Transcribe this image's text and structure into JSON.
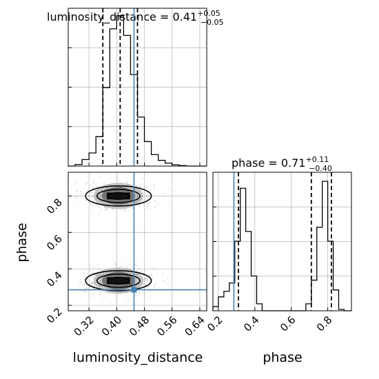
{
  "colors": {
    "background": "#ffffff",
    "axes": "#000000",
    "grid": "#b0b0b0",
    "hist": "#000000",
    "quantile": "#000000",
    "truth": "#4682b4",
    "scatter": "#9a9a9a",
    "density_dark": "#000000",
    "density_mid": "#555555",
    "density_light": "#9a9a9a"
  },
  "titles": {
    "luminosity_distance": {
      "prefix": "luminosity_distance = 0.41",
      "plus": "+0.05",
      "minus": "−0.05"
    },
    "phase": {
      "prefix": "phase = 0.71",
      "plus": "+0.11",
      "minus": "−0.40"
    }
  },
  "axis_labels": {
    "x_left": "luminosity_distance",
    "x_right": "phase",
    "y_left": "phase"
  },
  "chart_data": [
    {
      "type": "histogram",
      "panel": "luminosity_distance marginal",
      "parameter": "luminosity_distance",
      "xlim": [
        0.26,
        0.66
      ],
      "grid": true,
      "bins": [
        0.26,
        0.28,
        0.3,
        0.32,
        0.34,
        0.36,
        0.38,
        0.4,
        0.42,
        0.44,
        0.46,
        0.48,
        0.5,
        0.52,
        0.54,
        0.56,
        0.58,
        0.6,
        0.62,
        0.64,
        0.66
      ],
      "counts": [
        0.0,
        0.01,
        0.04,
        0.08,
        0.18,
        0.48,
        0.84,
        0.92,
        0.8,
        0.56,
        0.3,
        0.15,
        0.07,
        0.035,
        0.018,
        0.008,
        0.003,
        0.0,
        0.0,
        0.0
      ],
      "quantiles": [
        0.36,
        0.41,
        0.46
      ],
      "truth": 0.45,
      "title": "luminosity_distance = 0.41 +0.05 −0.05"
    },
    {
      "type": "scatter",
      "panel": "luminosity_distance vs phase",
      "xlabel": "luminosity_distance",
      "ylabel": "phase",
      "xlim": [
        0.26,
        0.66
      ],
      "ylim": [
        0.17,
        0.93
      ],
      "xticks": [
        "0.32",
        "0.40",
        "0.48",
        "0.56",
        "0.64"
      ],
      "yticks": [
        "0.2",
        "0.4",
        "0.6",
        "0.8"
      ],
      "grid": true,
      "clusters": [
        {
          "center": [
            0.405,
            0.8
          ],
          "spread": [
            0.05,
            0.038
          ]
        },
        {
          "center": [
            0.405,
            0.335
          ],
          "spread": [
            0.05,
            0.038
          ]
        }
      ],
      "contour_levels": [
        {
          "center": [
            0.405,
            0.8
          ],
          "radius": [
            0.095,
            0.055
          ]
        },
        {
          "center": [
            0.405,
            0.8
          ],
          "radius": [
            0.062,
            0.036
          ]
        },
        {
          "center": [
            0.405,
            0.8
          ],
          "radius": [
            0.03,
            0.018
          ]
        },
        {
          "center": [
            0.405,
            0.335
          ],
          "radius": [
            0.095,
            0.055
          ]
        },
        {
          "center": [
            0.405,
            0.335
          ],
          "radius": [
            0.062,
            0.036
          ]
        },
        {
          "center": [
            0.405,
            0.335
          ],
          "radius": [
            0.03,
            0.018
          ]
        }
      ],
      "truth": {
        "x": 0.45,
        "y": 0.285
      }
    },
    {
      "type": "histogram",
      "panel": "phase marginal",
      "parameter": "phase",
      "xlabel": "phase",
      "xlim": [
        0.17,
        0.93
      ],
      "xticks": [
        "0.2",
        "0.4",
        "0.6",
        "0.8"
      ],
      "grid": true,
      "bins": [
        0.17,
        0.2,
        0.23,
        0.26,
        0.29,
        0.32,
        0.35,
        0.38,
        0.41,
        0.44,
        0.47,
        0.5,
        0.53,
        0.56,
        0.59,
        0.62,
        0.65,
        0.68,
        0.71,
        0.74,
        0.77,
        0.8,
        0.83,
        0.86,
        0.89,
        0.93
      ],
      "counts": [
        0.03,
        0.1,
        0.14,
        0.2,
        0.5,
        0.88,
        0.57,
        0.25,
        0.05,
        0.0,
        0.0,
        0.0,
        0.0,
        0.0,
        0.0,
        0.0,
        0.0,
        0.05,
        0.22,
        0.6,
        0.93,
        0.5,
        0.15,
        0.01,
        0.0
      ],
      "quantiles": [
        0.31,
        0.71,
        0.82
      ],
      "truth": 0.285,
      "title": "phase = 0.71 +0.11 −0.40"
    }
  ]
}
